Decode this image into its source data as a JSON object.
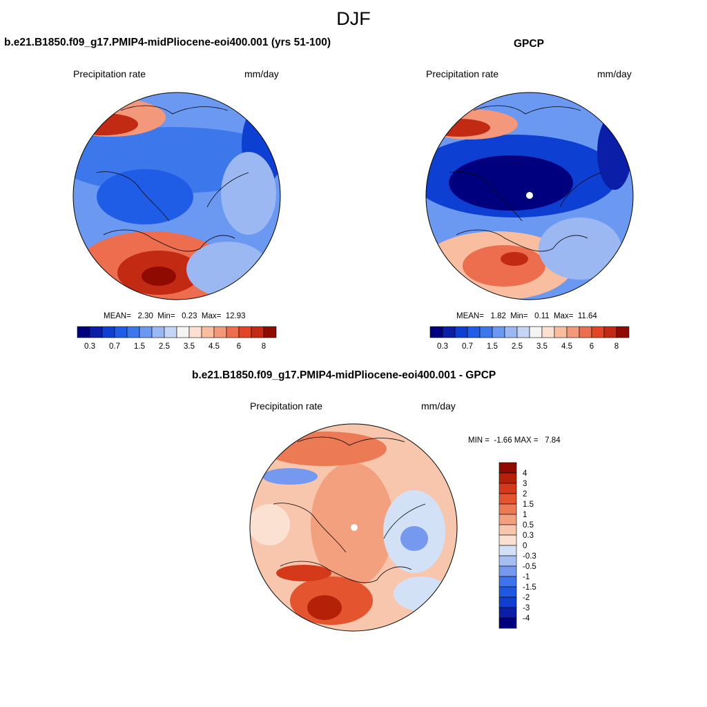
{
  "title": "DJF",
  "colors": {
    "seq": [
      "#00007f",
      "#0a1ea8",
      "#0d3fd2",
      "#1f5de6",
      "#3c78ec",
      "#6b98f0",
      "#9bb8f2",
      "#c5d6f5",
      "#f4f4f4",
      "#fde0cf",
      "#f9bda0",
      "#f3987a",
      "#ec6e4e",
      "#e24626",
      "#c22a14",
      "#8f0b00"
    ],
    "diff": [
      "#00007f",
      "#0a1ea8",
      "#0f3ed1",
      "#2058e0",
      "#3e74e9",
      "#7499ef",
      "#a5bff3",
      "#d3e1f7",
      "#fbe1d2",
      "#f7c6ad",
      "#f2a07e",
      "#ec7a54",
      "#e4542e",
      "#d4391a",
      "#b52108",
      "#8f0b00"
    ],
    "coast": "#000000",
    "pole_hole": "#ffffff"
  },
  "panels": [
    {
      "id": "model",
      "title": "b.e21.B1850.f09_g17.PMIP4-midPliocene-eoi400.001 (yrs 51-100)",
      "left_label": "Precipitation rate",
      "right_label": "mm/day",
      "stats": "MEAN=   2.30  Min=   0.23  Max=  12.93",
      "colorbar_ticks": [
        "0.3",
        "0.7",
        "1.5",
        "2.5",
        "3.5",
        "4.5",
        "6",
        "8"
      ]
    },
    {
      "id": "obs",
      "title": "GPCP",
      "left_label": "Precipitation rate",
      "right_label": "mm/day",
      "stats": "MEAN=   1.82  Min=   0.11  Max=  11.64",
      "colorbar_ticks": [
        "0.3",
        "0.7",
        "1.5",
        "2.5",
        "3.5",
        "4.5",
        "6",
        "8"
      ]
    },
    {
      "id": "diff",
      "title": "b.e21.B1850.f09_g17.PMIP4-midPliocene-eoi400.001 - GPCP",
      "left_label": "Precipitation rate",
      "right_label": "mm/day",
      "stats": "MIN =  -1.66 MAX =   7.84",
      "colorbar_ticks": [
        "4",
        "3",
        "2",
        "1.5",
        "1",
        "0.5",
        "0.3",
        "0",
        "-0.3",
        "-0.5",
        "-1",
        "-1.5",
        "-2",
        "-3",
        "-4"
      ]
    }
  ]
}
